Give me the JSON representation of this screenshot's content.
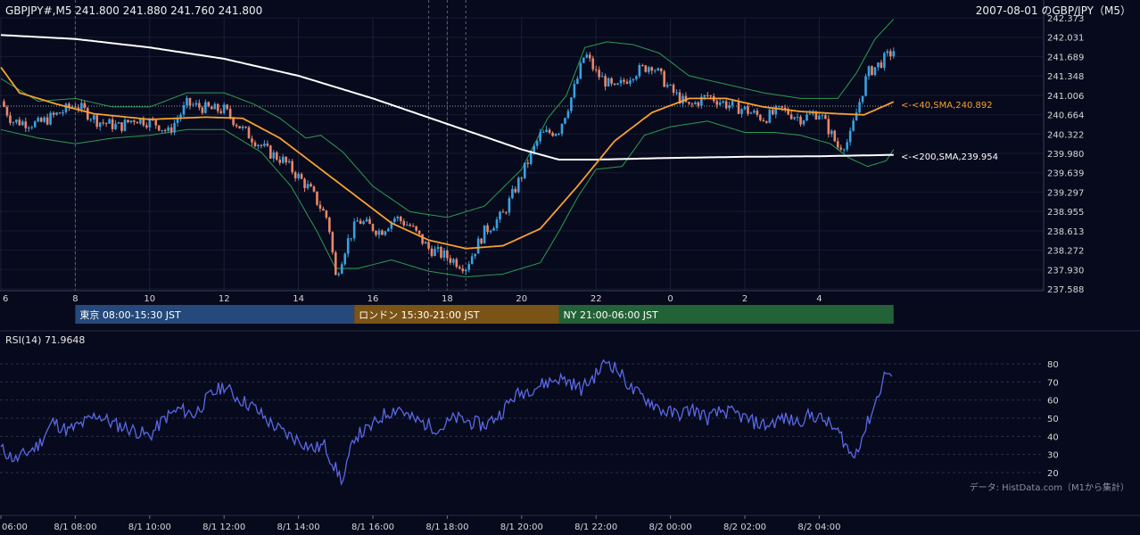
{
  "header": {
    "ohlc": "GBPJPY#,M5 241.800 241.880 241.760 241.800",
    "date_title": "2007-08-01 のGBP/JPY（M5）"
  },
  "sessions": [
    {
      "label": "東京 08:00-15:30 JST",
      "color": "#24497a",
      "start": 8.0,
      "end": 15.5
    },
    {
      "label": "ロンドン 15:30-21:00 JST",
      "color": "#7a5316",
      "start": 15.5,
      "end": 21.0
    },
    {
      "label": "NY 21:00-06:00 JST",
      "color": "#236236",
      "start": 21.0,
      "end": 30.0
    }
  ],
  "ma_labels": {
    "sma40": "<-<40,SMA,240.892",
    "sma200": "<-<200,SMA,239.954"
  },
  "rsi_label": "RSI(14) 71.9648",
  "source": "データ: HistData.com（M1から集計）",
  "colors": {
    "background": "#070a1c",
    "bull": "#3aa0e0",
    "bear": "#e8866a",
    "sma40": "#f5a030",
    "sma200": "#ffffff",
    "bollinger": "#2e9a52",
    "rsi": "#5a68e6"
  },
  "chart_data": {
    "type": "candlestick",
    "x_unit": "hour (JST, 8/1; values above 24 are 8/2)",
    "xlim": [
      6,
      30.3
    ],
    "ylim": [
      237.588,
      242.373
    ],
    "price_ticks": [
      "242.373",
      "242.031",
      "241.689",
      "241.348",
      "241.006",
      "240.664",
      "240.322",
      "239.980",
      "239.639",
      "239.297",
      "238.955",
      "238.613",
      "238.272",
      "237.930",
      "237.588"
    ],
    "hour_ticks": [
      "6",
      "8",
      "10",
      "12",
      "14",
      "16",
      "18",
      "20",
      "22",
      "0",
      "2",
      "4"
    ],
    "date_ticks": [
      "06:00",
      "8/1 08:00",
      "8/1 10:00",
      "8/1 12:00",
      "8/1 14:00",
      "8/1 16:00",
      "8/1 18:00",
      "8/1 20:00",
      "8/1 22:00",
      "8/2 00:00",
      "8/2 02:00",
      "8/2 04:00"
    ],
    "close_keypoints": [
      [
        6.0,
        240.9
      ],
      [
        6.3,
        240.55
      ],
      [
        7.0,
        240.5
      ],
      [
        7.6,
        240.7
      ],
      [
        8.0,
        240.85
      ],
      [
        8.6,
        240.55
      ],
      [
        9.2,
        240.45
      ],
      [
        9.6,
        240.6
      ],
      [
        10.2,
        240.5
      ],
      [
        10.5,
        240.35
      ],
      [
        11.0,
        240.85
      ],
      [
        11.7,
        240.75
      ],
      [
        12.0,
        240.75
      ],
      [
        12.5,
        240.4
      ],
      [
        13.2,
        240.0
      ],
      [
        13.6,
        239.85
      ],
      [
        14.3,
        239.35
      ],
      [
        14.8,
        238.8
      ],
      [
        15.0,
        237.8
      ],
      [
        15.3,
        238.4
      ],
      [
        15.6,
        238.8
      ],
      [
        16.2,
        238.6
      ],
      [
        16.6,
        238.85
      ],
      [
        17.0,
        238.7
      ],
      [
        17.5,
        238.3
      ],
      [
        18.0,
        238.15
      ],
      [
        18.5,
        237.98
      ],
      [
        19.0,
        238.6
      ],
      [
        19.5,
        238.9
      ],
      [
        20.0,
        239.6
      ],
      [
        20.5,
        240.3
      ],
      [
        21.0,
        240.4
      ],
      [
        21.3,
        240.9
      ],
      [
        21.5,
        241.3
      ],
      [
        21.7,
        241.75
      ],
      [
        22.0,
        241.4
      ],
      [
        22.5,
        241.1
      ],
      [
        23.0,
        241.4
      ],
      [
        23.5,
        241.55
      ],
      [
        24.0,
        241.1
      ],
      [
        24.5,
        240.8
      ],
      [
        25.0,
        241.0
      ],
      [
        25.5,
        240.85
      ],
      [
        26.0,
        240.75
      ],
      [
        26.5,
        240.6
      ],
      [
        27.0,
        240.75
      ],
      [
        27.5,
        240.6
      ],
      [
        28.0,
        240.7
      ],
      [
        28.3,
        240.35
      ],
      [
        28.5,
        240.1
      ],
      [
        28.8,
        240.2
      ],
      [
        29.0,
        240.7
      ],
      [
        29.3,
        241.4
      ],
      [
        29.6,
        241.55
      ],
      [
        30.0,
        241.8
      ]
    ],
    "sma40_keypoints": [
      [
        6.0,
        241.5
      ],
      [
        6.5,
        241.05
      ],
      [
        7.5,
        240.85
      ],
      [
        8.5,
        240.68
      ],
      [
        10.0,
        240.58
      ],
      [
        11.5,
        240.62
      ],
      [
        12.5,
        240.6
      ],
      [
        13.5,
        240.25
      ],
      [
        14.5,
        239.75
      ],
      [
        15.5,
        239.25
      ],
      [
        16.5,
        238.75
      ],
      [
        17.5,
        238.45
      ],
      [
        18.5,
        238.3
      ],
      [
        19.5,
        238.35
      ],
      [
        20.5,
        238.65
      ],
      [
        21.5,
        239.4
      ],
      [
        22.5,
        240.2
      ],
      [
        23.5,
        240.7
      ],
      [
        24.5,
        240.95
      ],
      [
        25.5,
        240.95
      ],
      [
        26.5,
        240.8
      ],
      [
        27.5,
        240.72
      ],
      [
        28.5,
        240.68
      ],
      [
        29.2,
        240.66
      ],
      [
        30.0,
        240.89
      ]
    ],
    "sma200_keypoints": [
      [
        6.0,
        242.07
      ],
      [
        8.0,
        242.0
      ],
      [
        10.0,
        241.85
      ],
      [
        12.0,
        241.65
      ],
      [
        14.0,
        241.35
      ],
      [
        16.0,
        240.95
      ],
      [
        18.0,
        240.5
      ],
      [
        20.0,
        240.05
      ],
      [
        21.0,
        239.87
      ],
      [
        22.0,
        239.87
      ],
      [
        24.0,
        239.9
      ],
      [
        26.0,
        239.92
      ],
      [
        28.0,
        239.93
      ],
      [
        30.0,
        239.954
      ]
    ],
    "bb_upper_keypoints": [
      [
        6.0,
        241.3
      ],
      [
        7.0,
        240.9
      ],
      [
        8.0,
        240.95
      ],
      [
        9.0,
        240.8
      ],
      [
        10.0,
        240.8
      ],
      [
        11.0,
        241.05
      ],
      [
        12.0,
        241.05
      ],
      [
        12.8,
        240.85
      ],
      [
        13.5,
        240.6
      ],
      [
        14.2,
        240.25
      ],
      [
        14.6,
        240.3
      ],
      [
        15.2,
        240.0
      ],
      [
        16.0,
        239.4
      ],
      [
        17.0,
        238.95
      ],
      [
        18.0,
        238.85
      ],
      [
        19.0,
        239.05
      ],
      [
        20.0,
        239.7
      ],
      [
        20.7,
        240.6
      ],
      [
        21.2,
        241.0
      ],
      [
        21.7,
        241.85
      ],
      [
        22.3,
        241.95
      ],
      [
        23.0,
        241.9
      ],
      [
        23.7,
        241.75
      ],
      [
        24.5,
        241.35
      ],
      [
        25.5,
        241.2
      ],
      [
        26.5,
        241.05
      ],
      [
        27.5,
        240.95
      ],
      [
        28.5,
        240.95
      ],
      [
        29.0,
        241.4
      ],
      [
        29.5,
        242.0
      ],
      [
        30.0,
        242.35
      ]
    ],
    "bb_lower_keypoints": [
      [
        6.0,
        240.4
      ],
      [
        7.0,
        240.25
      ],
      [
        8.0,
        240.15
      ],
      [
        9.0,
        240.25
      ],
      [
        10.0,
        240.3
      ],
      [
        11.0,
        240.4
      ],
      [
        12.0,
        240.4
      ],
      [
        13.0,
        240.0
      ],
      [
        13.8,
        239.4
      ],
      [
        14.5,
        238.6
      ],
      [
        15.0,
        237.95
      ],
      [
        15.6,
        237.95
      ],
      [
        16.5,
        238.1
      ],
      [
        17.5,
        237.9
      ],
      [
        18.5,
        237.8
      ],
      [
        19.5,
        237.85
      ],
      [
        20.5,
        238.05
      ],
      [
        21.0,
        238.6
      ],
      [
        21.5,
        239.2
      ],
      [
        22.0,
        239.7
      ],
      [
        22.7,
        239.75
      ],
      [
        23.3,
        240.3
      ],
      [
        24.0,
        240.45
      ],
      [
        25.0,
        240.55
      ],
      [
        26.0,
        240.35
      ],
      [
        26.8,
        240.35
      ],
      [
        27.5,
        240.3
      ],
      [
        28.3,
        240.15
      ],
      [
        28.8,
        239.9
      ],
      [
        29.3,
        239.75
      ],
      [
        29.8,
        239.85
      ],
      [
        30.0,
        240.05
      ]
    ],
    "rsi": {
      "ylim": [
        15,
        85
      ],
      "ticks": [
        "80",
        "70",
        "60",
        "50",
        "40",
        "30",
        "20"
      ],
      "keypoints": [
        [
          6.0,
          33
        ],
        [
          6.4,
          27
        ],
        [
          7.0,
          35
        ],
        [
          7.4,
          48
        ],
        [
          7.8,
          43
        ],
        [
          8.2,
          47
        ],
        [
          8.6,
          52
        ],
        [
          9.0,
          47
        ],
        [
          9.5,
          44
        ],
        [
          10.0,
          40
        ],
        [
          10.4,
          50
        ],
        [
          10.8,
          55
        ],
        [
          11.2,
          52
        ],
        [
          11.6,
          62
        ],
        [
          12.0,
          68
        ],
        [
          12.3,
          62
        ],
        [
          12.8,
          56
        ],
        [
          13.2,
          48
        ],
        [
          13.6,
          42
        ],
        [
          14.0,
          38
        ],
        [
          14.4,
          33
        ],
        [
          14.7,
          35
        ],
        [
          15.0,
          22
        ],
        [
          15.2,
          15
        ],
        [
          15.5,
          40
        ],
        [
          15.9,
          44
        ],
        [
          16.3,
          52
        ],
        [
          16.7,
          56
        ],
        [
          17.0,
          50
        ],
        [
          17.4,
          47
        ],
        [
          17.8,
          44
        ],
        [
          18.2,
          50
        ],
        [
          18.6,
          48
        ],
        [
          19.0,
          46
        ],
        [
          19.4,
          52
        ],
        [
          19.8,
          62
        ],
        [
          20.2,
          66
        ],
        [
          20.6,
          69
        ],
        [
          21.0,
          72
        ],
        [
          21.3,
          70
        ],
        [
          21.6,
          66
        ],
        [
          22.0,
          74
        ],
        [
          22.3,
          82
        ],
        [
          22.6,
          76
        ],
        [
          23.0,
          65
        ],
        [
          23.4,
          60
        ],
        [
          23.8,
          54
        ],
        [
          24.2,
          52
        ],
        [
          24.6,
          55
        ],
        [
          25.0,
          50
        ],
        [
          25.4,
          54
        ],
        [
          25.8,
          52
        ],
        [
          26.2,
          48
        ],
        [
          26.6,
          46
        ],
        [
          27.0,
          50
        ],
        [
          27.4,
          48
        ],
        [
          27.8,
          52
        ],
        [
          28.2,
          48
        ],
        [
          28.6,
          40
        ],
        [
          28.9,
          28
        ],
        [
          29.2,
          42
        ],
        [
          29.5,
          58
        ],
        [
          29.8,
          76
        ],
        [
          30.0,
          72
        ]
      ]
    }
  }
}
